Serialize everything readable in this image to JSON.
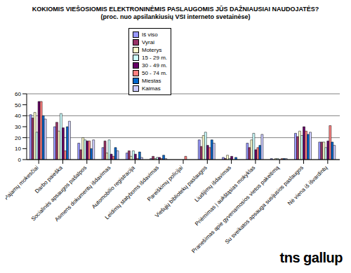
{
  "chart_data": {
    "type": "bar",
    "title": "KOKIOMIS VIEŠOSIOMIS ELEKTRONINĖMIS PASLAUGOMIS JŪS DAŽNIAUSIAI NAUDOJATĖS?",
    "subtitle": "(proc. nuo apsilankiusių VSI interneto svetainėse)",
    "annotation": "tns gallup",
    "categories": [
      "Pajamų mokesčiai",
      "Darbo paieška",
      "Socialinės apsaugos pašalpos",
      "Asmens dokumentų išdavimas",
      "Automobilio registracija",
      "Leidimų statyboms išdavimas",
      "Pareiškimų policijai",
      "Viešųjų bibliotekų paslaugos",
      "Liudijimų išdavimas",
      "Priėmimas į aukštąsias mokyklas",
      "Pranešimas apie gyvenamosios vietos pakeitimą",
      "Su sveikatos apsauga susijusios paslaugos",
      "Nė viena iš išvardintų"
    ],
    "series": [
      {
        "name": "Iš viso",
        "color": "#9999ff",
        "values": [
          41,
          30,
          15,
          11,
          6,
          1,
          0,
          18,
          2,
          15,
          1,
          24,
          16
        ]
      },
      {
        "name": "Vyrai",
        "color": "#993366",
        "values": [
          38,
          34,
          9,
          17,
          8,
          3,
          0,
          12,
          1,
          11,
          0,
          21,
          16
        ]
      },
      {
        "name": "Moterys",
        "color": "#ffffcc",
        "values": [
          43,
          26,
          20,
          6,
          3,
          1,
          0,
          22,
          4,
          18,
          1,
          26,
          16
        ]
      },
      {
        "name": "15 - 29 m.",
        "color": "#ccffff",
        "values": [
          25,
          42,
          18,
          18,
          8,
          2,
          0,
          25,
          1,
          24,
          1,
          22,
          11
        ]
      },
      {
        "name": "30 - 49 m.",
        "color": "#660066",
        "values": [
          53,
          29,
          17,
          5,
          5,
          2,
          0,
          13,
          3,
          9,
          0,
          30,
          17
        ]
      },
      {
        "name": "50 - 74 m.",
        "color": "#ff8080",
        "values": [
          53,
          8,
          17,
          3,
          1,
          1,
          3,
          11,
          0,
          11,
          1,
          26,
          31
        ]
      },
      {
        "name": "Miestas",
        "color": "#0066cc",
        "values": [
          40,
          30,
          10,
          11,
          7,
          4,
          0,
          18,
          2,
          13,
          1,
          23,
          16
        ]
      },
      {
        "name": "Kaimas",
        "color": "#ccccff",
        "values": [
          37,
          35,
          18,
          8,
          2,
          1,
          0,
          15,
          0,
          23,
          1,
          25,
          13
        ]
      }
    ],
    "ylim": [
      0,
      60
    ],
    "yticks": [
      0,
      10,
      20,
      30,
      40,
      50,
      60
    ],
    "grid": true,
    "legend": "top"
  }
}
